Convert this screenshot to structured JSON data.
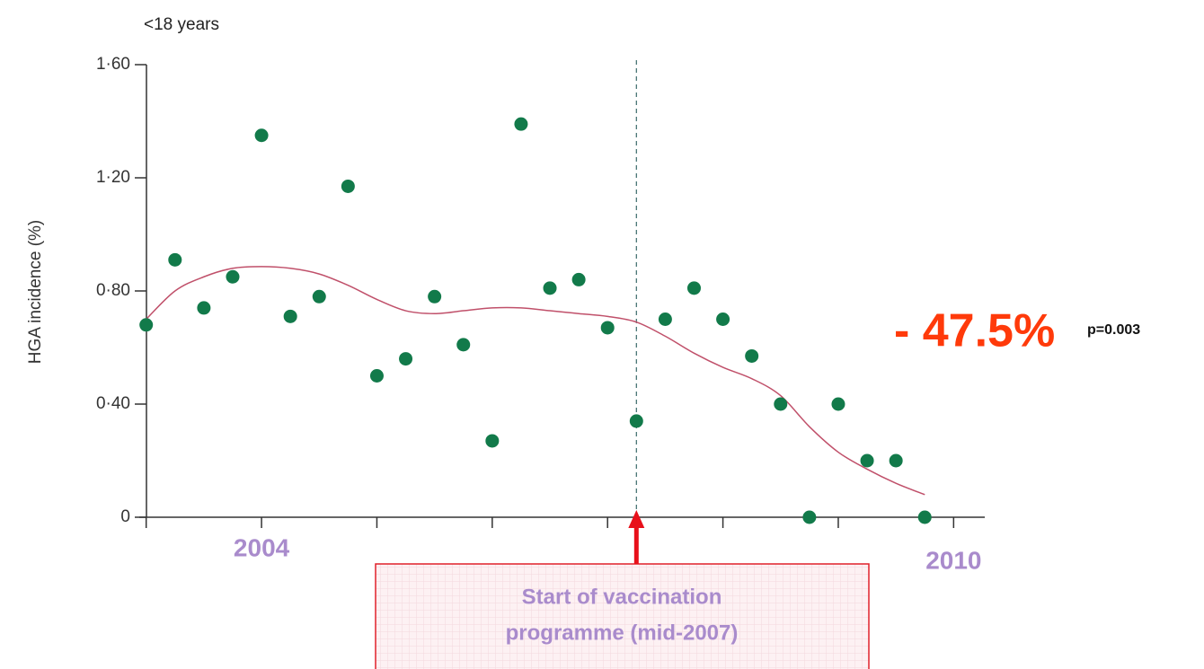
{
  "chart_data": {
    "type": "scatter",
    "title": "<18 years",
    "y_label": "HGA incidence (%)",
    "x": [
      2003,
      2003.25,
      2003.5,
      2003.75,
      2004,
      2004.25,
      2004.5,
      2004.75,
      2005,
      2005.25,
      2005.5,
      2005.75,
      2006,
      2006.25,
      2006.5,
      2006.75,
      2007,
      2007.25,
      2007.5,
      2007.75,
      2008,
      2008.25,
      2008.5,
      2008.75,
      2009,
      2009.25,
      2009.5,
      2009.75
    ],
    "series": [
      {
        "color": "#127a4a",
        "values": [
          0.68,
          0.91,
          0.74,
          0.85,
          1.35,
          0.71,
          0.78,
          1.17,
          0.5,
          0.56,
          0.78,
          0.61,
          0.27,
          1.39,
          0.81,
          0.84,
          0.67,
          0.34,
          0.7,
          0.81,
          0.7,
          0.57,
          0.4,
          0,
          0.4,
          0.2,
          0.2,
          0
        ]
      },
      {
        "color": "#c0506a",
        "values": [
          0.7,
          0.8,
          0.85,
          0.88,
          0.886,
          0.88,
          0.86,
          0.82,
          0.77,
          0.73,
          0.72,
          0.73,
          0.74,
          0.74,
          0.73,
          0.72,
          0.71,
          0.69,
          0.64,
          0.58,
          0.53,
          0.49,
          0.43,
          0.32,
          0.23,
          0.17,
          0.12,
          0.08
        ]
      }
    ],
    "xlim": [
      2002.94,
      2010.27
    ],
    "ylim": [
      0,
      1.6
    ],
    "yticks": [
      0,
      {
        "value": 0.4,
        "label": "0·40"
      },
      {
        "value": 0.8,
        "label": "0·80"
      },
      {
        "value": 1.2,
        "label": "1·20"
      },
      {
        "value": 1.6,
        "label": "1·60"
      }
    ],
    "xticks": [
      2003,
      {
        "value": 2004,
        "label": "2004"
      },
      2005,
      2006,
      2007,
      2008,
      2009,
      {
        "value": 2010,
        "label": "2010"
      }
    ],
    "vline_x": 2007.25,
    "reduction_label": "- 47.5%",
    "p_value_label": "p=0.003",
    "vaccination_note": [
      "Start of vaccination",
      "programme (mid-2007)"
    ]
  }
}
